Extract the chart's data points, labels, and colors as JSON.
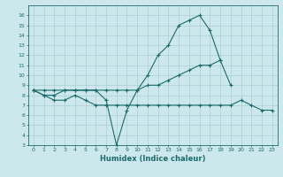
{
  "title": "",
  "xlabel": "Humidex (Indice chaleur)",
  "x": [
    0,
    1,
    2,
    3,
    4,
    5,
    6,
    7,
    8,
    9,
    10,
    11,
    12,
    13,
    14,
    15,
    16,
    17,
    18,
    19,
    20,
    21,
    22,
    23
  ],
  "line1": [
    8.5,
    8.0,
    8.0,
    8.5,
    8.5,
    8.5,
    8.5,
    7.5,
    3.0,
    6.5,
    8.5,
    10.0,
    12.0,
    13.0,
    15.0,
    15.5,
    16.0,
    14.5,
    11.5,
    null,
    null,
    null,
    null,
    null
  ],
  "line2": [
    8.5,
    8.5,
    8.5,
    8.5,
    8.5,
    8.5,
    8.5,
    8.5,
    8.5,
    8.5,
    8.5,
    9.0,
    9.0,
    9.5,
    10.0,
    10.5,
    11.0,
    11.0,
    11.5,
    9.0,
    null,
    null,
    null,
    null
  ],
  "line3": [
    8.5,
    8.0,
    7.5,
    7.5,
    8.0,
    7.5,
    7.0,
    7.0,
    7.0,
    7.0,
    7.0,
    7.0,
    7.0,
    7.0,
    7.0,
    7.0,
    7.0,
    7.0,
    7.0,
    7.0,
    7.5,
    7.0,
    6.5,
    6.5
  ],
  "line_color": "#1a6b6b",
  "marker": "+",
  "markersize": 3,
  "linewidth": 0.8,
  "bg_color": "#cce8ec",
  "grid_color": "#aacdd4",
  "ylim": [
    3,
    17
  ],
  "xlim": [
    -0.5,
    23.5
  ],
  "yticks": [
    3,
    4,
    5,
    6,
    7,
    8,
    9,
    10,
    11,
    12,
    13,
    14,
    15,
    16
  ],
  "xticks": [
    0,
    1,
    2,
    3,
    4,
    5,
    6,
    7,
    8,
    9,
    10,
    11,
    12,
    13,
    14,
    15,
    16,
    17,
    18,
    19,
    20,
    21,
    22,
    23
  ],
  "tick_fontsize": 4.5,
  "label_fontsize": 6.0
}
